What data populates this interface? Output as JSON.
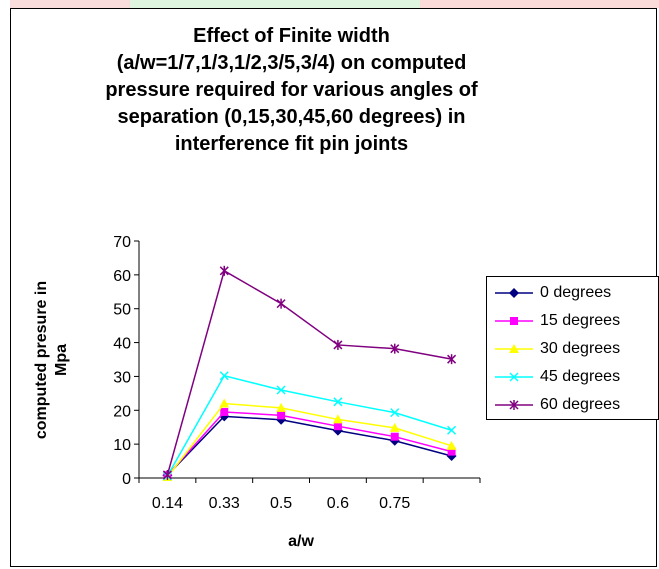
{
  "chart_data": {
    "type": "line",
    "title_lines": [
      "Effect of Finite width",
      "(a/w=1/7,1/3,1/2,3/5,3/4) on computed",
      "pressure required for various angles of",
      "separation (0,15,30,45,60 degrees) in",
      "interference fit pin joints"
    ],
    "xlabel": "a/w",
    "ylabel_lines": [
      "computed presure in",
      "Mpa"
    ],
    "categories": [
      "0.14",
      "0.33",
      "0.5",
      "0.6",
      "0.75",
      ""
    ],
    "ylim": [
      0,
      70
    ],
    "yticks": [
      0,
      10,
      20,
      30,
      40,
      50,
      60,
      70
    ],
    "legend_position": "right",
    "series": [
      {
        "name": "0 degrees",
        "color": "#000080",
        "marker": "diamond",
        "values": [
          0.8,
          18.2,
          17.2,
          14.0,
          11.0,
          6.5
        ]
      },
      {
        "name": "15 degrees",
        "color": "#ff00ff",
        "marker": "square",
        "values": [
          0.8,
          19.5,
          18.5,
          15.3,
          12.2,
          7.8
        ]
      },
      {
        "name": "30 degrees",
        "color": "#ffff00",
        "marker": "triangle",
        "values": [
          0.3,
          22.0,
          20.7,
          17.3,
          14.8,
          9.5
        ]
      },
      {
        "name": "45 degrees",
        "color": "#00ffff",
        "marker": "x",
        "values": [
          0.6,
          30.2,
          26.0,
          22.5,
          19.3,
          14.1
        ]
      },
      {
        "name": "60 degrees",
        "color": "#800080",
        "marker": "star",
        "values": [
          0.9,
          61.2,
          51.5,
          39.3,
          38.2,
          35.1
        ]
      }
    ]
  }
}
